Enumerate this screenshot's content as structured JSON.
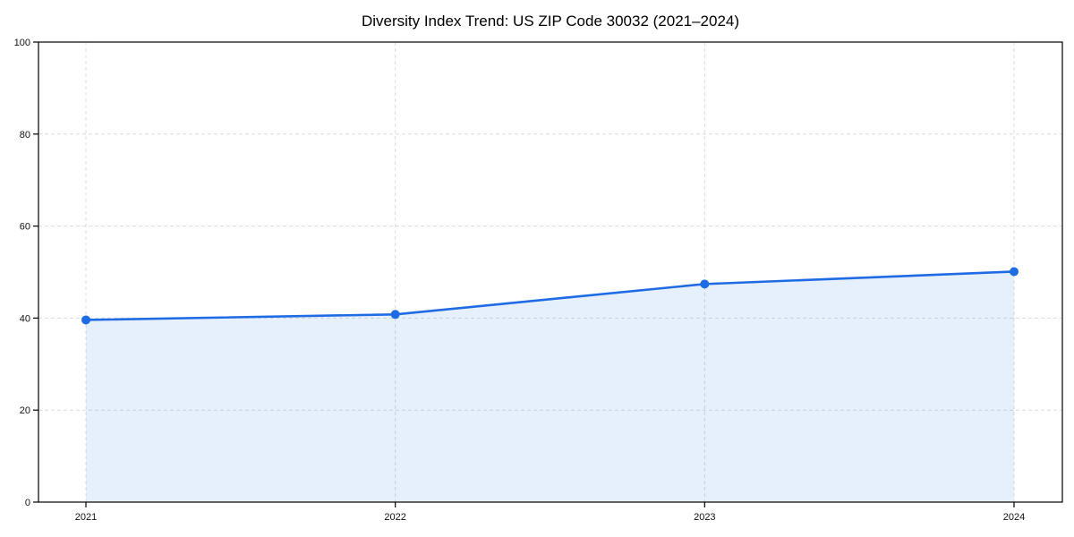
{
  "chart_data": {
    "type": "area",
    "title": "Diversity Index Trend: US ZIP Code 30032 (2021–2024)",
    "x": [
      2021,
      2022,
      2023,
      2024
    ],
    "series": [
      {
        "name": "Diversity Index",
        "values": [
          39.6,
          40.8,
          47.4,
          50.1
        ]
      }
    ],
    "xlabel": "",
    "ylabel": "",
    "ylim": [
      0,
      100
    ],
    "yticks": [
      0,
      20,
      40,
      60,
      80,
      100
    ],
    "xticks": [
      "2021",
      "2022",
      "2023",
      "2024"
    ],
    "grid": "dashed, both axes",
    "legend": "none",
    "line_color": "#1f6be4",
    "fill_color": "rgba(31,107,228,0.11)",
    "grid_color": "#dcdcdc",
    "axis_color": "#000000",
    "background_color": "#ffffff"
  }
}
